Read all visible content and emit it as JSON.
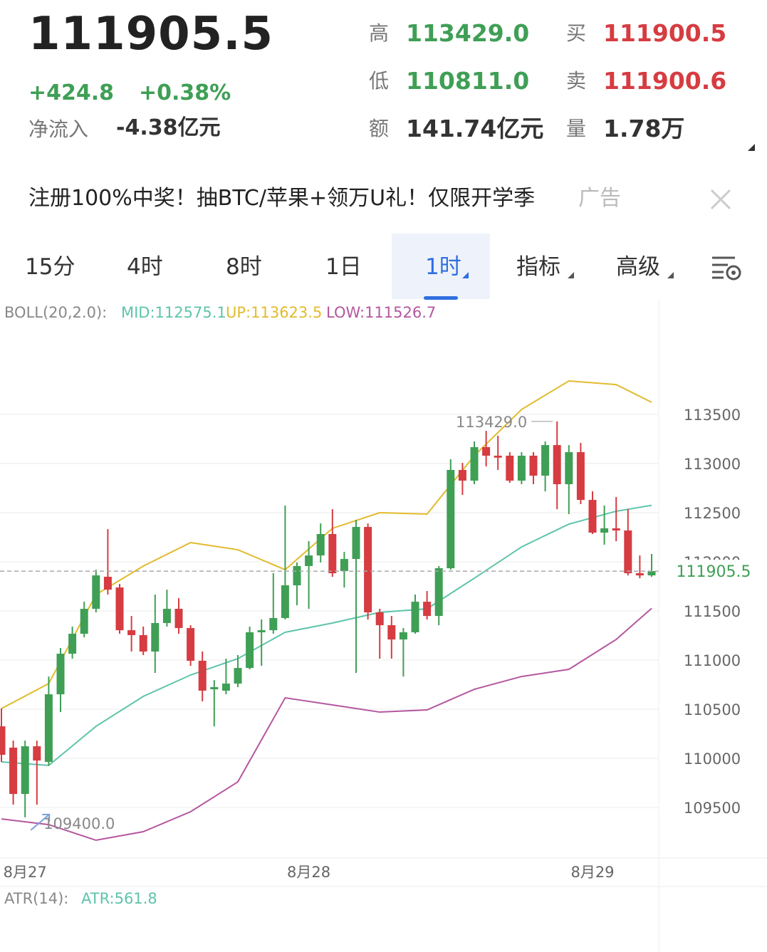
{
  "header": {
    "price": "111905.5",
    "change": "+424.8",
    "change_pct": "+0.38%",
    "net_inflow_label": "净流入",
    "net_inflow": "-4.38亿元",
    "stats": [
      {
        "label": "高",
        "value": "113429.0"
      },
      {
        "label": "买",
        "value": "111900.5"
      },
      {
        "label": "低",
        "value": "110811.0"
      },
      {
        "label": "卖",
        "value": "111900.6"
      },
      {
        "label": "额",
        "value": "141.74亿元"
      },
      {
        "label": "量",
        "value": "1.78万"
      }
    ]
  },
  "ad": {
    "text": "注册100%中奖！抽BTC/苹果+领万U礼！仅限开学季",
    "tag": "广告"
  },
  "tabs": [
    "15分",
    "4时",
    "8时",
    "1日",
    "1时",
    "指标",
    "高级"
  ],
  "active_tab": 4,
  "chart_data": {
    "type": "candlestick",
    "indicator_label": "BOLL(20,2.0):",
    "categories": [
      null,
      null,
      "8月27",
      null,
      null,
      null,
      null,
      null,
      null,
      null,
      null,
      null,
      null,
      null,
      null,
      null,
      null,
      null,
      null,
      null,
      null,
      null,
      null,
      null,
      null,
      null,
      "8月28",
      null,
      null,
      null,
      null,
      null,
      null,
      null,
      null,
      null,
      null,
      null,
      null,
      null,
      null,
      null,
      null,
      null,
      null,
      null,
      null,
      null,
      null,
      null,
      "8月29",
      null,
      null,
      null,
      null,
      null
    ],
    "open": [
      110326,
      110109,
      109638,
      110123,
      109964,
      110652,
      111065,
      111268,
      111522,
      111848,
      111739,
      111304,
      111254,
      111087,
      111377,
      111522,
      111326,
      110993,
      110703,
      110689,
      110761,
      110920,
      111283,
      111304,
      111428,
      111761,
      111957,
      112065,
      112283,
      111906,
      112029,
      112355,
      111486,
      111355,
      111210,
      111283,
      111594,
      111449,
      111935,
      112935,
      112826,
      113167,
      113080,
      113080,
      112826,
      113080,
      112877,
      113188,
      112790,
      113116,
      112630,
      112297,
      112341,
      112319,
      111884,
      111862
    ],
    "high": [
      110507,
      110181,
      110181,
      110181,
      110833,
      111123,
      111341,
      111594,
      111920,
      112333,
      111775,
      111449,
      111341,
      111667,
      111717,
      111630,
      111355,
      111087,
      110797,
      111015,
      111051,
      111341,
      111413,
      111884,
      112573,
      111993,
      112210,
      112391,
      112536,
      112101,
      112428,
      112391,
      111522,
      111449,
      111326,
      111667,
      111703,
      111957,
      113044,
      113007,
      113225,
      113333,
      113283,
      113116,
      113116,
      113116,
      113225,
      113429,
      113188,
      113210,
      112717,
      112573,
      112659,
      112536,
      112065,
      112080
    ],
    "low": [
      109963,
      109529,
      109400,
      109529,
      109928,
      110471,
      111015,
      111232,
      111486,
      111667,
      111268,
      111087,
      111051,
      110870,
      111341,
      111268,
      110942,
      110580,
      110326,
      110652,
      110725,
      110906,
      110942,
      111268,
      111413,
      111558,
      111522,
      111993,
      111848,
      111739,
      110870,
      111413,
      111015,
      111015,
      110833,
      111268,
      111413,
      111355,
      111920,
      112681,
      112790,
      112971,
      112935,
      112804,
      112790,
      112790,
      112717,
      112536,
      112486,
      112587,
      112283,
      112174,
      112210,
      111862,
      111833,
      111848
    ],
    "close": [
      110036,
      109638,
      110123,
      109978,
      110652,
      111065,
      111268,
      111522,
      111862,
      111717,
      111304,
      111254,
      111087,
      111377,
      111522,
      111326,
      110993,
      110689,
      110725,
      110761,
      110920,
      111283,
      111304,
      111428,
      111761,
      111957,
      112065,
      112283,
      111884,
      112029,
      112355,
      111486,
      111355,
      111210,
      111283,
      111594,
      111449,
      111935,
      112935,
      112826,
      113167,
      113080,
      113060,
      112826,
      113080,
      112877,
      113188,
      112790,
      113116,
      112630,
      112297,
      112341,
      112319,
      111884,
      111862,
      111905.5
    ],
    "up_color": "#3f9f55",
    "down_color": "#d63c41",
    "lines": [
      {
        "name": "MID:112575.1",
        "color": "#5ec4ab",
        "x": [
          0,
          4,
          8,
          12,
          16,
          20,
          24,
          28,
          32,
          36,
          40,
          44,
          48,
          52,
          55
        ],
        "values": [
          109964,
          109928,
          110326,
          110631,
          110848,
          111015,
          111283,
          111377,
          111486,
          111522,
          111833,
          112152,
          112384,
          112515,
          112575.1
        ]
      },
      {
        "name": "UP:113623.5",
        "color": "#e2bb2c",
        "x": [
          0,
          4,
          8,
          12,
          16,
          20,
          24,
          28,
          32,
          36,
          40,
          44,
          48,
          52,
          55
        ],
        "values": [
          110507,
          110761,
          111667,
          111957,
          112196,
          112123,
          111920,
          112341,
          112500,
          112486,
          113080,
          113551,
          113841,
          113804,
          113623.5
        ]
      },
      {
        "name": "LOW:111526.7",
        "color": "#b4579f",
        "x": [
          0,
          4,
          8,
          12,
          16,
          20,
          24,
          28,
          32,
          36,
          40,
          44,
          48,
          52,
          55
        ],
        "values": [
          109384,
          109326,
          109167,
          109254,
          109457,
          109761,
          110616,
          110544,
          110471,
          110493,
          110703,
          110833,
          110906,
          111210,
          111526.7
        ]
      }
    ],
    "ylim": [
      108986,
      114674
    ],
    "yticks": [
      109500,
      110000,
      110500,
      111000,
      111500,
      112000,
      112500,
      113000,
      113500
    ],
    "grid": true,
    "current_price": 111905.5,
    "current_price_label": "111905.5",
    "annotations": [
      {
        "value": 113429,
        "label": "113429.0"
      },
      {
        "value": 109400,
        "label": "109400.0"
      }
    ],
    "sub_indicator_label": "ATR(14):",
    "sub_indicator_value": "ATR:561.8"
  }
}
